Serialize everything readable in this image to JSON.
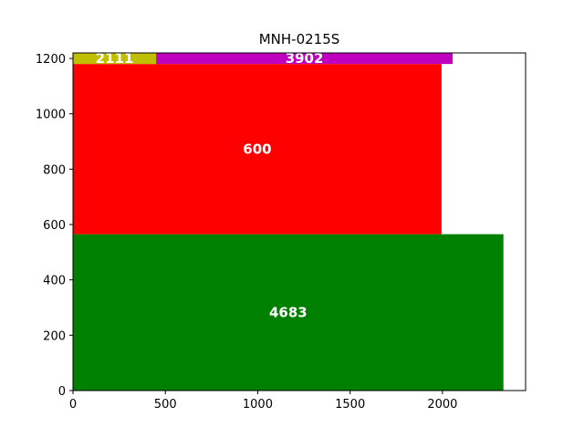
{
  "chart_data": {
    "type": "bar",
    "title": "MNH-0215S",
    "xlabel": "",
    "ylabel": "",
    "xlim": [
      0,
      2450
    ],
    "ylim": [
      0,
      1220
    ],
    "xticks": [
      0,
      500,
      1000,
      1500,
      2000
    ],
    "yticks": [
      0,
      200,
      400,
      600,
      800,
      1000,
      1200
    ],
    "grid": false,
    "legend": "none",
    "rectangles": [
      {
        "label": "4683",
        "x0": 0,
        "x1": 2330,
        "y0": 0,
        "y1": 565,
        "color": "#008000"
      },
      {
        "label": "600",
        "x0": 0,
        "x1": 1995,
        "y0": 565,
        "y1": 1180,
        "color": "#ff0000"
      },
      {
        "label": "2111",
        "x0": 0,
        "x1": 450,
        "y0": 1180,
        "y1": 1220,
        "color": "#bfbf00"
      },
      {
        "label": "3902",
        "x0": 450,
        "x1": 2055,
        "y0": 1180,
        "y1": 1220,
        "color": "#bf00bf"
      }
    ]
  }
}
